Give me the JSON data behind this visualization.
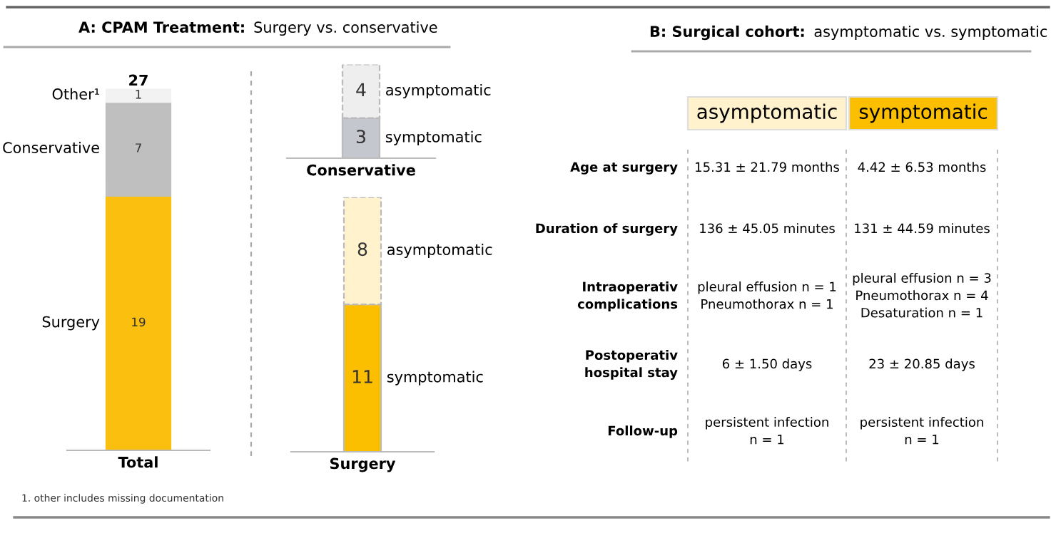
{
  "chart_data": [
    {
      "type": "bar",
      "stacked": true,
      "title": "A: CPAM Treatment: Surgery vs. conservative",
      "categories": [
        "Total"
      ],
      "legend": "left",
      "data_labels": true,
      "totals": [
        "27"
      ],
      "series": [
        {
          "name": "Surgery",
          "color": "#fbbf10",
          "values": [
            19
          ]
        },
        {
          "name": "Conservative",
          "color": "#bfbfbf",
          "values": [
            7
          ]
        },
        {
          "name": "Other¹",
          "color": "#f2f2f2",
          "values": [
            1
          ]
        }
      ],
      "annotations": [
        "1. other includes missing documentation"
      ]
    },
    {
      "type": "bar",
      "stacked": true,
      "categories": [
        "Conservative"
      ],
      "legend": "right",
      "data_labels": true,
      "series": [
        {
          "name": "symptomatic",
          "color": "#c5c7cf",
          "values": [
            3
          ]
        },
        {
          "name": "asymptomatic",
          "color": "#eeeeee",
          "values": [
            4
          ],
          "line_style": "dashed"
        }
      ]
    },
    {
      "type": "bar",
      "stacked": true,
      "categories": [
        "Surgery"
      ],
      "legend": "right",
      "data_labels": true,
      "series": [
        {
          "name": "symptomatic",
          "color": "#fbbf00",
          "values": [
            11
          ]
        },
        {
          "name": "asymptomatic",
          "color": "#fff2cc",
          "values": [
            8
          ],
          "line_style": "dashed"
        }
      ]
    },
    {
      "type": "other",
      "title": "B: Surgical cohort: asymptomatic vs. symptomatic",
      "categories": [
        "asymptomatic",
        "symptomatic"
      ],
      "colors": [
        "#fff2cc",
        "#fbbf00"
      ],
      "y_categories": [
        "Age at surgery",
        "Duration of surgery",
        "Intraoperativ\ncomplications",
        "Postoperativ\nhospital stay",
        "Follow-up"
      ],
      "cell_labels": [
        [
          "15.31 ± 21.79 months",
          "4.42 ± 6.53 months"
        ],
        [
          "136 ± 45.05 minutes",
          "131 ± 44.59 minutes"
        ],
        [
          "pleural effusion n = 1\nPneumothorax n = 1",
          "pleural effusion n = 3\nPneumothorax n = 4\nDesaturation n = 1"
        ],
        [
          "6 ± 1.50 days",
          "23 ± 20.85 days"
        ],
        [
          "persistent infection\nn = 1",
          "persistent infection\nn = 1"
        ]
      ]
    }
  ]
}
